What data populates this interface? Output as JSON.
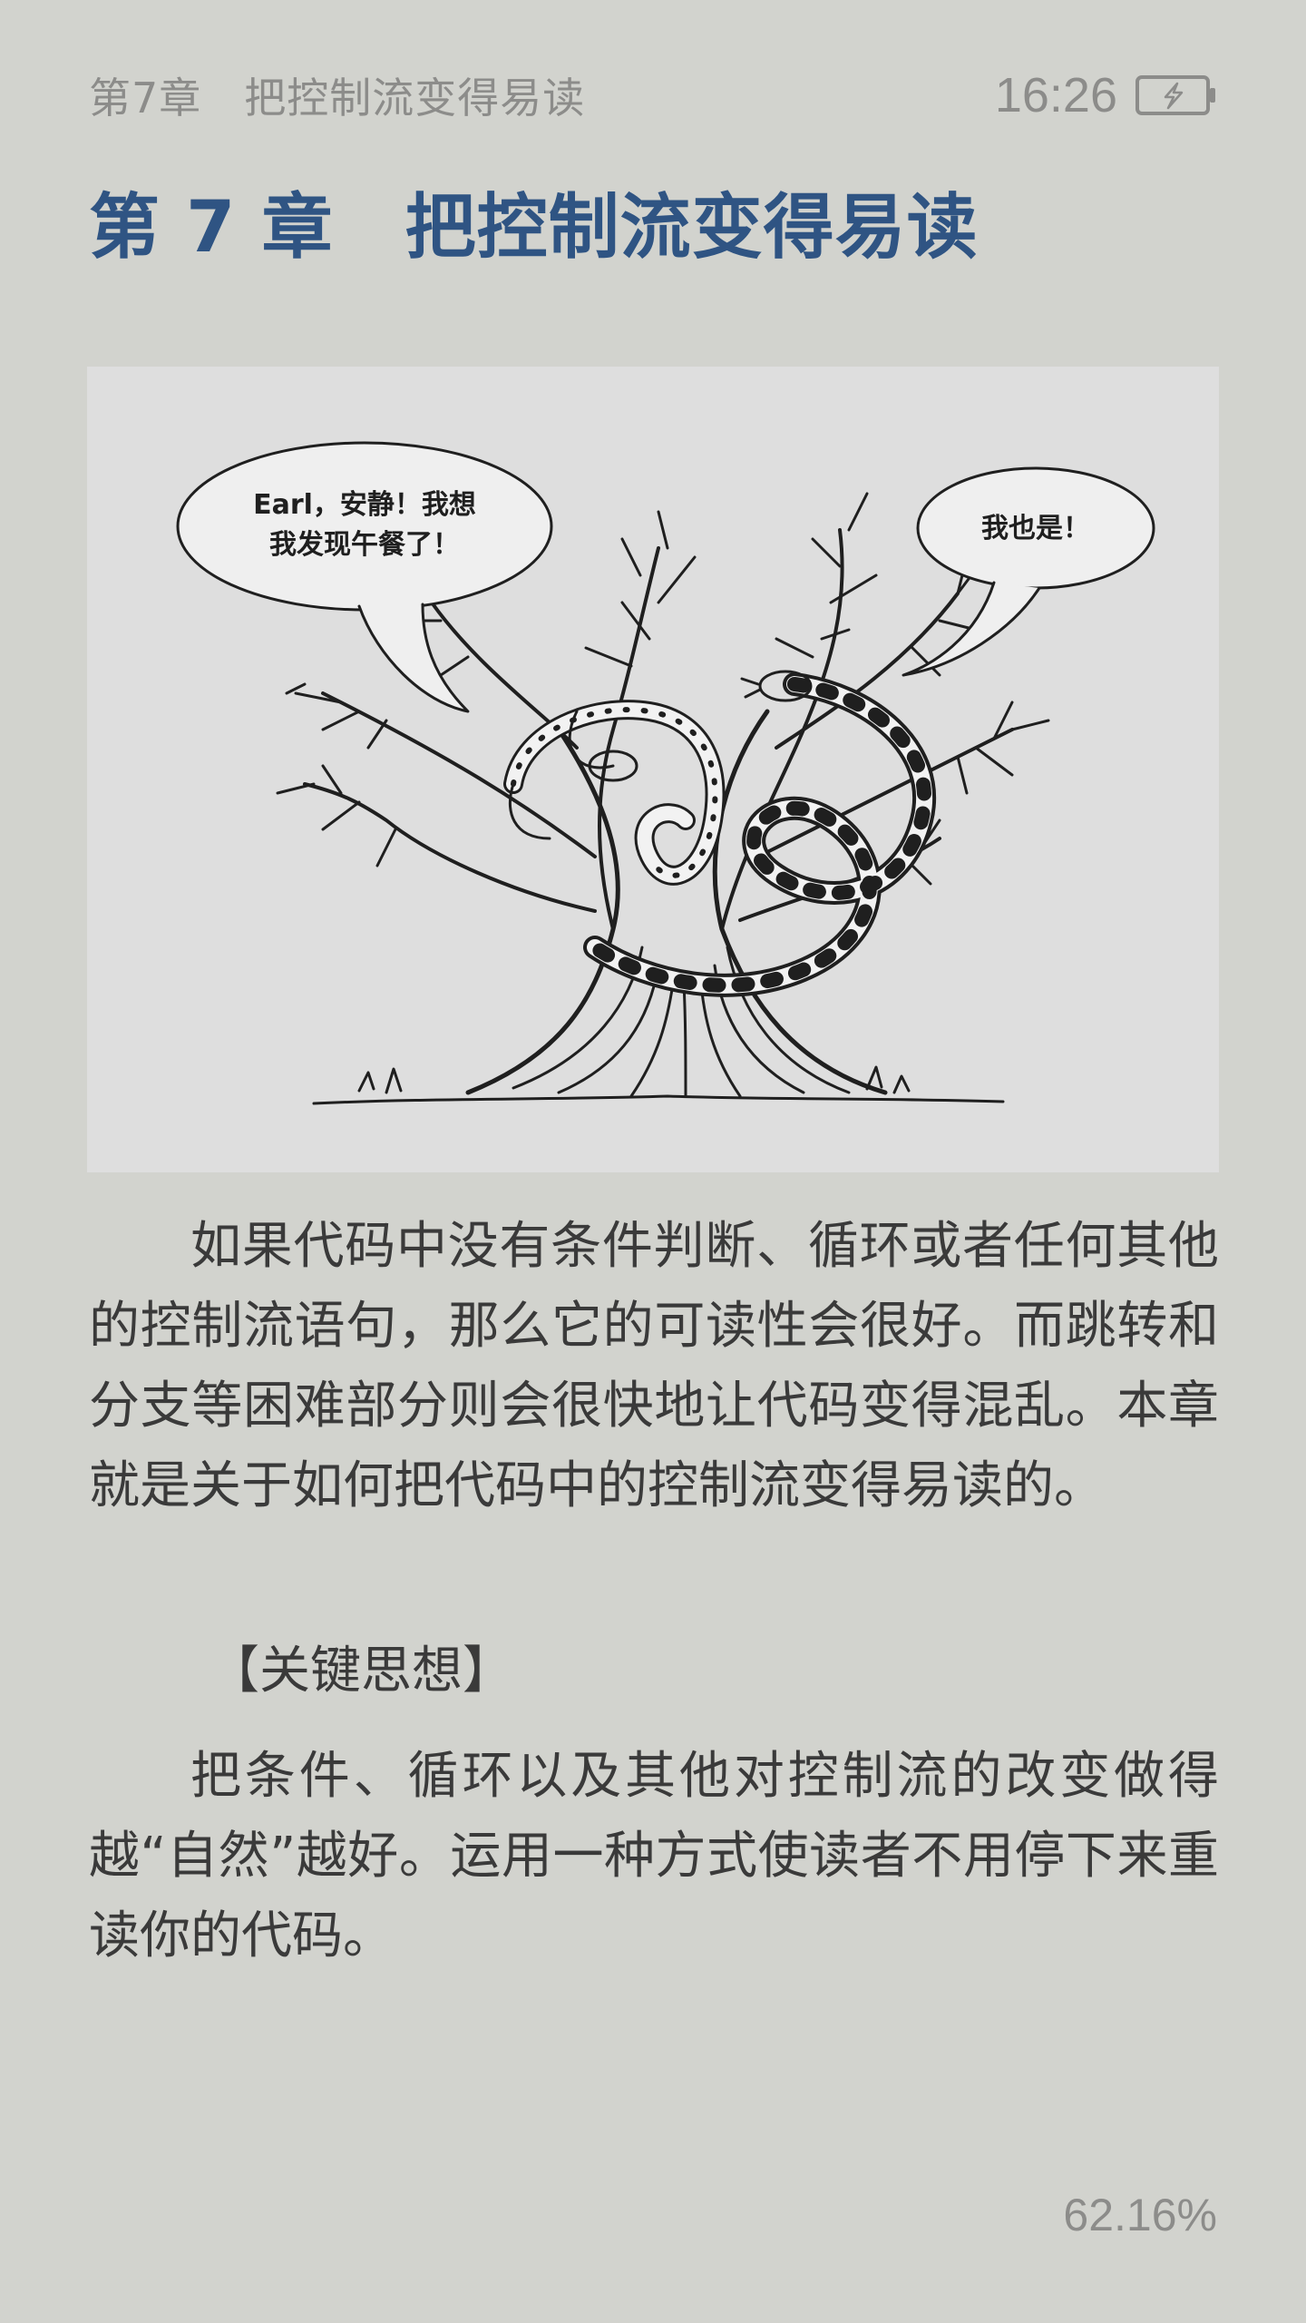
{
  "status_bar": {
    "running_head": "第7章　把控制流变得易读",
    "time": "16:26",
    "battery_icon": "battery-charging-icon"
  },
  "chapter": {
    "title": "第 7 章　把控制流变得易读"
  },
  "illustration": {
    "bubble_left_line1": "Earl，安静！我想",
    "bubble_left_line2": "我发现午餐了！",
    "bubble_right": "我也是！"
  },
  "content": {
    "paragraph_1": "如果代码中没有条件判断、循环或者任何其他的控制流语句，那么它的可读性会很好。而跳转和分支等困难部分则会很快地让代码变得混乱。本章就是关于如何把代码中的控制流变得易读的。",
    "key_idea_heading": "【关键思想】",
    "paragraph_2": "把条件、循环以及其他对控制流的改变做得越“自然”越好。运用一种方式使读者不用停下来重读你的代码。"
  },
  "footer": {
    "progress": "62.16%"
  }
}
